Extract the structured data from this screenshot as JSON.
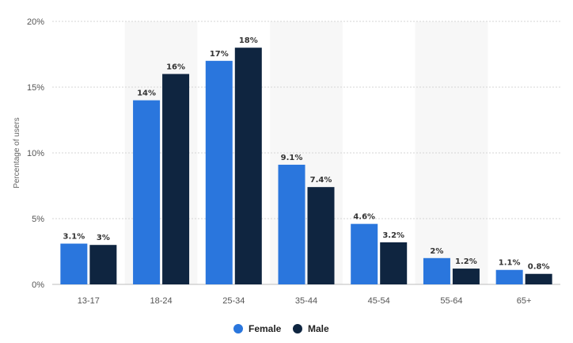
{
  "chart_data": {
    "type": "bar",
    "categories": [
      "13-17",
      "18-24",
      "25-34",
      "35-44",
      "45-54",
      "55-64",
      "65+"
    ],
    "series": [
      {
        "name": "Female",
        "color": "#2a76dd",
        "values": [
          3.1,
          14,
          17,
          9.1,
          4.6,
          2,
          1.1
        ],
        "labels": [
          "3.1%",
          "14%",
          "17%",
          "9.1%",
          "4.6%",
          "2%",
          "1.1%"
        ]
      },
      {
        "name": "Male",
        "color": "#0f2540",
        "values": [
          3,
          16,
          18,
          7.4,
          3.2,
          1.2,
          0.8
        ],
        "labels": [
          "3%",
          "16%",
          "18%",
          "7.4%",
          "3.2%",
          "1.2%",
          "0.8%"
        ]
      }
    ],
    "ylabel": "Percentage of users",
    "xlabel": "",
    "ylim": [
      0,
      20
    ],
    "yticks": [
      0,
      5,
      10,
      15,
      20
    ],
    "ytick_labels": [
      "0%",
      "5%",
      "10%",
      "15%",
      "20%"
    ],
    "grid": true,
    "legend_position": "bottom-center",
    "band_color": "#f7f7f7"
  }
}
